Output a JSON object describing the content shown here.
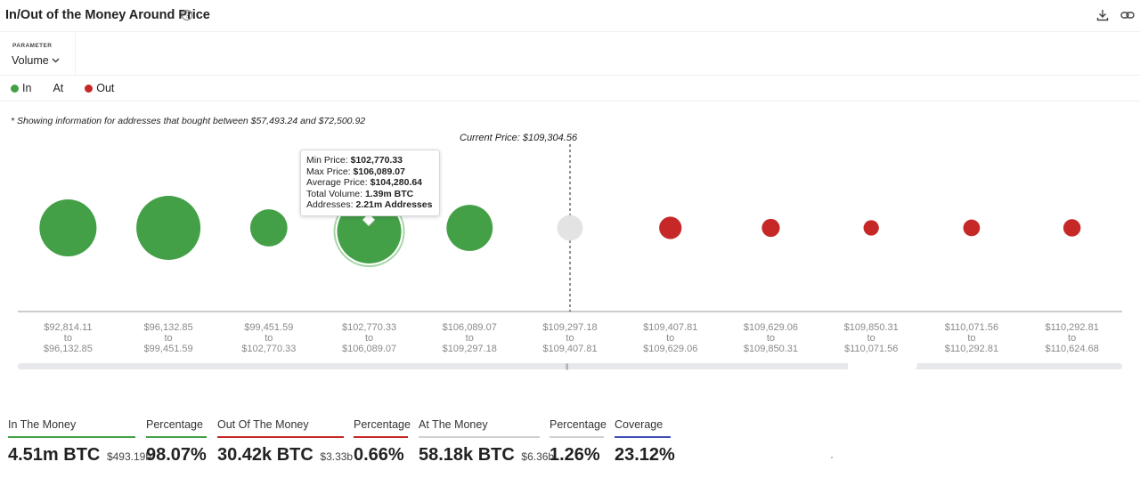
{
  "header": {
    "title": "In/Out of the Money Around Price",
    "help_icon": "question-circle-icon",
    "download_icon": "download-icon",
    "link_icon": "link-icon"
  },
  "parameter": {
    "label": "PARAMETER",
    "value": "Volume"
  },
  "legend": [
    {
      "label": "In",
      "color": "#43a047"
    },
    {
      "label": "At",
      "color": "#d8d8d8"
    },
    {
      "label": "Out",
      "color": "#c62828"
    }
  ],
  "note": "* Showing information for addresses that bought between $57,493.24 and $72,500.92",
  "chart_data": {
    "type": "scatter",
    "current_price_label": "Current Price: $109,304.56",
    "categories": [
      {
        "from": "$92,814.11",
        "to": "$96,132.85",
        "status": "in",
        "relative_size": 0.89
      },
      {
        "from": "$96,132.85",
        "to": "$99,451.59",
        "status": "in",
        "relative_size": 1.0
      },
      {
        "from": "$99,451.59",
        "to": "$102,770.33",
        "status": "in",
        "relative_size": 0.58
      },
      {
        "from": "$102,770.33",
        "to": "$106,089.07",
        "status": "in",
        "relative_size": 1.0,
        "highlighted": true
      },
      {
        "from": "$106,089.07",
        "to": "$109,297.18",
        "status": "in",
        "relative_size": 0.72
      },
      {
        "from": "$109,297.18",
        "to": "$109,407.81",
        "status": "at",
        "relative_size": 0.4
      },
      {
        "from": "$109,407.81",
        "to": "$109,629.06",
        "status": "out",
        "relative_size": 0.35
      },
      {
        "from": "$109,629.06",
        "to": "$109,850.31",
        "status": "out",
        "relative_size": 0.28
      },
      {
        "from": "$109,850.31",
        "to": "$110,071.56",
        "status": "out",
        "relative_size": 0.24
      },
      {
        "from": "$110,071.56",
        "to": "$110,292.81",
        "status": "out",
        "relative_size": 0.26
      },
      {
        "from": "$110,292.81",
        "to": "$110,624.68",
        "status": "out",
        "relative_size": 0.27
      }
    ],
    "to_word": "to",
    "tooltip": {
      "min_label": "Min Price:",
      "min_value": "$102,770.33",
      "max_label": "Max Price:",
      "max_value": "$106,089.07",
      "avg_label": "Average Price:",
      "avg_value": "$104,280.64",
      "vol_label": "Total Volume:",
      "vol_value": "1.39m BTC",
      "addr_label": "Addresses:",
      "addr_value": "2.21m Addresses"
    }
  },
  "stats": [
    {
      "label": "In The Money",
      "value": "4.51m BTC",
      "sub": "$493.19b",
      "color": "#43a047"
    },
    {
      "label": "Percentage",
      "value": "98.07%",
      "sub": "",
      "color": "#43a047"
    },
    {
      "label": "Out Of The Money",
      "value": "30.42k BTC",
      "sub": "$3.33b",
      "color": "#c62828"
    },
    {
      "label": "Percentage",
      "value": "0.66%",
      "sub": "",
      "color": "#c62828"
    },
    {
      "label": "At The Money",
      "value": "58.18k BTC",
      "sub": "$6.36b",
      "color": "#d0d0d0"
    },
    {
      "label": "Percentage",
      "value": "1.26%",
      "sub": "",
      "color": "#d0d0d0"
    },
    {
      "label": "Coverage",
      "value": "23.12%",
      "sub": "",
      "color": "#3f51b5"
    }
  ],
  "colors": {
    "in": "#43a047",
    "at": "#e3e3e3",
    "out": "#c62828",
    "axis": "#9a9a9a",
    "tick": "#8a8a8a"
  }
}
